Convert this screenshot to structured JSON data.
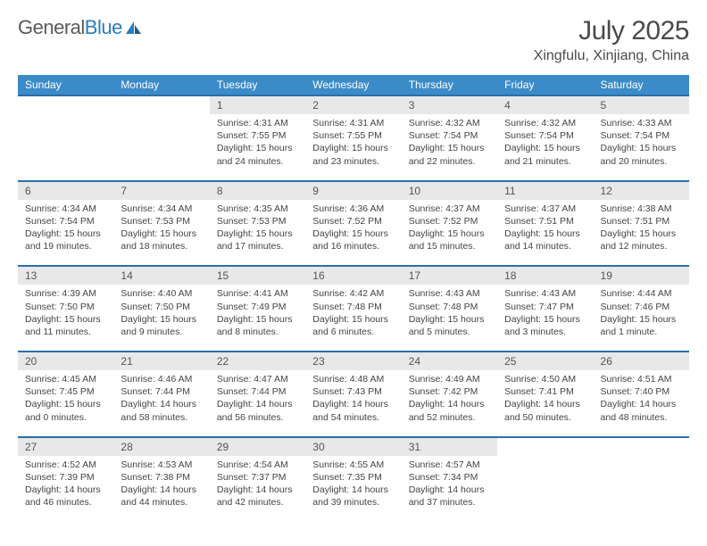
{
  "brand": {
    "part1": "General",
    "part2": "Blue"
  },
  "title": "July 2025",
  "location": "Xingfulu, Xinjiang, China",
  "colors": {
    "header_bg": "#3b8bc9",
    "header_border": "#2b6fa8",
    "daynum_bg": "#e8e8e8",
    "brand_blue": "#2b7cc0",
    "text": "#4a4a4a"
  },
  "weekdays": [
    "Sunday",
    "Monday",
    "Tuesday",
    "Wednesday",
    "Thursday",
    "Friday",
    "Saturday"
  ],
  "weeks": [
    {
      "nums": [
        "",
        "",
        "1",
        "2",
        "3",
        "4",
        "5"
      ],
      "cells": [
        null,
        null,
        {
          "sunrise": "4:31 AM",
          "sunset": "7:55 PM",
          "daylight": "15 hours and 24 minutes."
        },
        {
          "sunrise": "4:31 AM",
          "sunset": "7:55 PM",
          "daylight": "15 hours and 23 minutes."
        },
        {
          "sunrise": "4:32 AM",
          "sunset": "7:54 PM",
          "daylight": "15 hours and 22 minutes."
        },
        {
          "sunrise": "4:32 AM",
          "sunset": "7:54 PM",
          "daylight": "15 hours and 21 minutes."
        },
        {
          "sunrise": "4:33 AM",
          "sunset": "7:54 PM",
          "daylight": "15 hours and 20 minutes."
        }
      ]
    },
    {
      "nums": [
        "6",
        "7",
        "8",
        "9",
        "10",
        "11",
        "12"
      ],
      "cells": [
        {
          "sunrise": "4:34 AM",
          "sunset": "7:54 PM",
          "daylight": "15 hours and 19 minutes."
        },
        {
          "sunrise": "4:34 AM",
          "sunset": "7:53 PM",
          "daylight": "15 hours and 18 minutes."
        },
        {
          "sunrise": "4:35 AM",
          "sunset": "7:53 PM",
          "daylight": "15 hours and 17 minutes."
        },
        {
          "sunrise": "4:36 AM",
          "sunset": "7:52 PM",
          "daylight": "15 hours and 16 minutes."
        },
        {
          "sunrise": "4:37 AM",
          "sunset": "7:52 PM",
          "daylight": "15 hours and 15 minutes."
        },
        {
          "sunrise": "4:37 AM",
          "sunset": "7:51 PM",
          "daylight": "15 hours and 14 minutes."
        },
        {
          "sunrise": "4:38 AM",
          "sunset": "7:51 PM",
          "daylight": "15 hours and 12 minutes."
        }
      ]
    },
    {
      "nums": [
        "13",
        "14",
        "15",
        "16",
        "17",
        "18",
        "19"
      ],
      "cells": [
        {
          "sunrise": "4:39 AM",
          "sunset": "7:50 PM",
          "daylight": "15 hours and 11 minutes."
        },
        {
          "sunrise": "4:40 AM",
          "sunset": "7:50 PM",
          "daylight": "15 hours and 9 minutes."
        },
        {
          "sunrise": "4:41 AM",
          "sunset": "7:49 PM",
          "daylight": "15 hours and 8 minutes."
        },
        {
          "sunrise": "4:42 AM",
          "sunset": "7:48 PM",
          "daylight": "15 hours and 6 minutes."
        },
        {
          "sunrise": "4:43 AM",
          "sunset": "7:48 PM",
          "daylight": "15 hours and 5 minutes."
        },
        {
          "sunrise": "4:43 AM",
          "sunset": "7:47 PM",
          "daylight": "15 hours and 3 minutes."
        },
        {
          "sunrise": "4:44 AM",
          "sunset": "7:46 PM",
          "daylight": "15 hours and 1 minute."
        }
      ]
    },
    {
      "nums": [
        "20",
        "21",
        "22",
        "23",
        "24",
        "25",
        "26"
      ],
      "cells": [
        {
          "sunrise": "4:45 AM",
          "sunset": "7:45 PM",
          "daylight": "15 hours and 0 minutes."
        },
        {
          "sunrise": "4:46 AM",
          "sunset": "7:44 PM",
          "daylight": "14 hours and 58 minutes."
        },
        {
          "sunrise": "4:47 AM",
          "sunset": "7:44 PM",
          "daylight": "14 hours and 56 minutes."
        },
        {
          "sunrise": "4:48 AM",
          "sunset": "7:43 PM",
          "daylight": "14 hours and 54 minutes."
        },
        {
          "sunrise": "4:49 AM",
          "sunset": "7:42 PM",
          "daylight": "14 hours and 52 minutes."
        },
        {
          "sunrise": "4:50 AM",
          "sunset": "7:41 PM",
          "daylight": "14 hours and 50 minutes."
        },
        {
          "sunrise": "4:51 AM",
          "sunset": "7:40 PM",
          "daylight": "14 hours and 48 minutes."
        }
      ]
    },
    {
      "nums": [
        "27",
        "28",
        "29",
        "30",
        "31",
        "",
        ""
      ],
      "cells": [
        {
          "sunrise": "4:52 AM",
          "sunset": "7:39 PM",
          "daylight": "14 hours and 46 minutes."
        },
        {
          "sunrise": "4:53 AM",
          "sunset": "7:38 PM",
          "daylight": "14 hours and 44 minutes."
        },
        {
          "sunrise": "4:54 AM",
          "sunset": "7:37 PM",
          "daylight": "14 hours and 42 minutes."
        },
        {
          "sunrise": "4:55 AM",
          "sunset": "7:35 PM",
          "daylight": "14 hours and 39 minutes."
        },
        {
          "sunrise": "4:57 AM",
          "sunset": "7:34 PM",
          "daylight": "14 hours and 37 minutes."
        },
        null,
        null
      ]
    }
  ],
  "labels": {
    "sunrise": "Sunrise:",
    "sunset": "Sunset:",
    "daylight": "Daylight:"
  }
}
